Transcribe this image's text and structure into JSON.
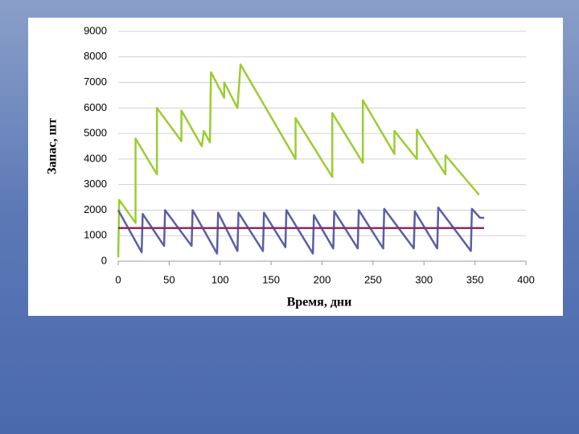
{
  "chart_data": {
    "type": "line",
    "x_label": "Время, дни",
    "y_label": "Запас, шт",
    "xlim": [
      0,
      400
    ],
    "xticks": [
      0,
      50,
      100,
      150,
      200,
      250,
      300,
      350,
      400
    ],
    "ylim": [
      0,
      9000
    ],
    "yticks": [
      0,
      1000,
      2000,
      3000,
      4000,
      5000,
      6000,
      7000,
      8000,
      9000
    ],
    "grid": true,
    "series": [
      {
        "color": "#9acd32",
        "x": [
          0,
          1,
          17,
          17,
          38,
          38,
          62,
          62,
          82,
          84,
          90,
          91,
          104,
          104,
          117,
          120,
          174,
          174,
          210,
          210,
          240,
          240,
          271,
          271,
          293,
          293,
          321,
          321,
          354
        ],
        "values": [
          150,
          2400,
          1500,
          4800,
          3400,
          6000,
          4700,
          5900,
          4500,
          5100,
          4650,
          7400,
          6400,
          7000,
          6000,
          7700,
          4000,
          5600,
          3300,
          5800,
          3850,
          6300,
          4200,
          5100,
          4000,
          5150,
          3400,
          4150,
          2600
        ]
      },
      {
        "color": "#5b5ea6",
        "x": [
          0,
          23,
          24,
          45,
          46,
          72,
          73,
          97,
          98,
          117,
          118,
          142,
          143,
          164,
          165,
          191,
          192,
          211,
          212,
          235,
          236,
          260,
          261,
          290,
          291,
          313,
          314,
          346,
          347,
          355,
          359
        ],
        "values": [
          2000,
          350,
          1850,
          600,
          2000,
          600,
          2000,
          300,
          1900,
          400,
          1900,
          400,
          1900,
          550,
          2000,
          300,
          1800,
          500,
          1950,
          500,
          2000,
          500,
          2050,
          500,
          1950,
          500,
          2100,
          400,
          2050,
          1700,
          1700
        ]
      },
      {
        "color": "#8b2d6b",
        "x": [
          0,
          359
        ],
        "values": [
          1300,
          1300
        ]
      }
    ]
  }
}
